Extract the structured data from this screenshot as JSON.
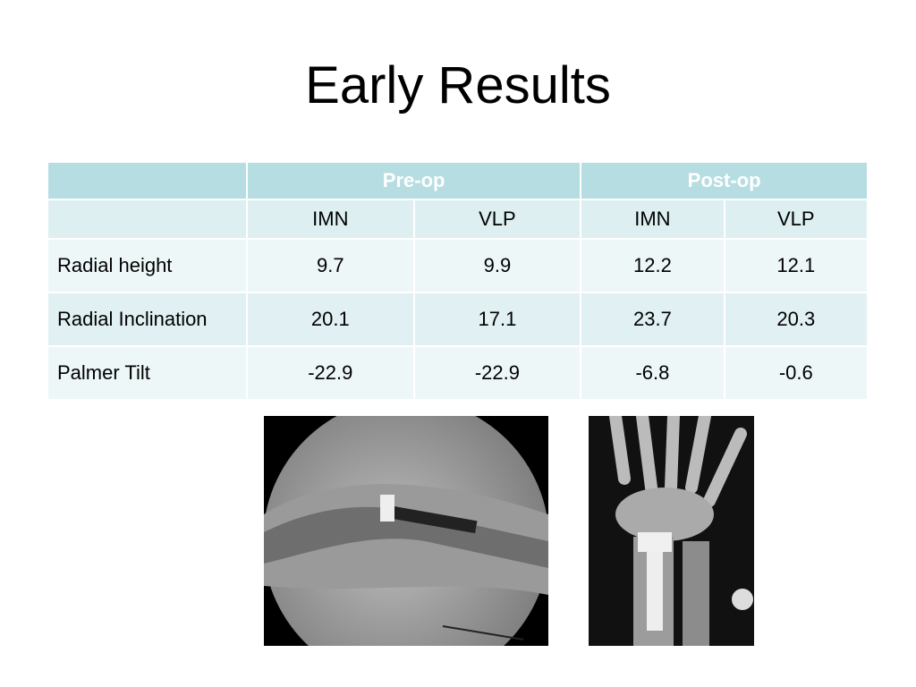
{
  "title": "Early Results",
  "table": {
    "groups": [
      "Pre-op",
      "Post-op"
    ],
    "subheaders": [
      "IMN",
      "VLP",
      "IMN",
      "VLP"
    ],
    "rows": [
      [
        "Radial height",
        9.7,
        9.9,
        12.2,
        12.1
      ],
      [
        "Radial Inclination",
        20.1,
        17.1,
        23.7,
        20.3
      ],
      [
        "Palmer Tilt",
        -22.9,
        -22.9,
        -6.8,
        -0.6
      ]
    ]
  }
}
